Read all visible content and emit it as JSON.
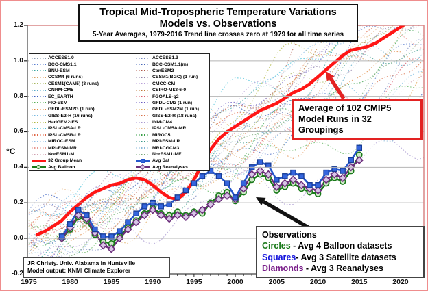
{
  "title": {
    "line1": "Tropical Mid-Tropospheric Temperature Variations",
    "line2": "Models vs. Observations",
    "subtitle": "5-Year Averages, 1979-2016 Trend line crosses zero at 1979 for all time series"
  },
  "axes": {
    "unit_label": "°C",
    "y_tick_labels": [
      "1.2",
      "1.0",
      "0.8",
      "0.6",
      "0.4",
      "0.2",
      "0.0",
      "-0.2"
    ],
    "y_tick_values": [
      1.2,
      1.0,
      0.8,
      0.6,
      0.4,
      0.2,
      0.0,
      -0.2
    ],
    "x_tick_labels": [
      "1975",
      "1980",
      "1985",
      "1990",
      "1995",
      "2000",
      "2005",
      "2010",
      "2015",
      "2020"
    ],
    "x_tick_values": [
      1975,
      1980,
      1985,
      1990,
      1995,
      2000,
      2005,
      2010,
      2015,
      2020
    ]
  },
  "annotations": {
    "cmip5_box": {
      "line1": "Average of 102 CMIP5",
      "line2": "Model Runs in 32 Groupings",
      "border_color": "#e32222"
    },
    "observations_box": {
      "header": "Observations",
      "rows": [
        {
          "word": "Circles",
          "rest": " - Avg 4 Balloon datasets",
          "color": "#1a7a1a"
        },
        {
          "word": "Squares",
          "rest": "- Avg 3 Satellite datasets",
          "color": "#1515dd"
        },
        {
          "word": "Diamonds",
          "rest": " - Avg 3 Reanalyses",
          "color": "#7a1f8a"
        }
      ]
    },
    "credit_box": {
      "line1": "JR Christy. Univ. Alabama in Huntsville",
      "line2": "Model output: KNMI Climate Explorer"
    }
  },
  "legend": {
    "specials_left": [
      {
        "label": "32 Group Mean",
        "color": "#ff1616",
        "type": "thick"
      },
      {
        "label": "Avg Balloon",
        "color": "#1a7a1a",
        "fill": "#cfe9c8",
        "type": "circle"
      }
    ],
    "specials_right": [
      {
        "label": "Avg Sat",
        "color": "#2456cc",
        "fill": "#3565dd",
        "type": "square"
      },
      {
        "label": "Avg Reanalyses",
        "color": "#6b2d7a",
        "fill": "#d8c4e6",
        "type": "diamond"
      }
    ]
  },
  "chart_data": {
    "type": "line",
    "title": "Tropical Mid-Tropospheric Temperature Variations, Models vs. Observations",
    "xlabel": "Year",
    "ylabel": "°C",
    "x_range": [
      1975,
      2023
    ],
    "y_range": [
      -0.2,
      1.2
    ],
    "grid": "horizontal",
    "series": [
      {
        "name": "32 Group Mean",
        "color": "#ff1616",
        "style": "thick-solid",
        "start_year": 1976,
        "values": [
          0.02,
          0.04,
          0.07,
          0.1,
          0.15,
          0.19,
          0.23,
          0.26,
          0.28,
          0.3,
          0.31,
          0.33,
          0.34,
          0.33,
          0.3,
          0.26,
          0.23,
          0.22,
          0.26,
          0.33,
          0.42,
          0.5,
          0.56,
          0.6,
          0.63,
          0.66,
          0.69,
          0.72,
          0.74,
          0.76,
          0.79,
          0.82,
          0.84,
          0.87,
          0.91,
          0.95,
          0.99,
          1.03,
          1.06,
          1.07,
          1.08,
          1.1,
          1.13,
          1.16,
          1.19,
          1.22,
          1.24,
          1.26
        ]
      },
      {
        "name": "Avg Sat",
        "color": "#2456cc",
        "marker": "square",
        "fill": "#3565dd",
        "start_year": 1979,
        "values": [
          0.01,
          0.08,
          0.16,
          0.13,
          0.05,
          0.01,
          0.01,
          0.04,
          0.09,
          0.14,
          0.18,
          0.2,
          0.18,
          0.19,
          0.23,
          0.27,
          0.31,
          0.35,
          0.38,
          0.35,
          0.31,
          0.23,
          0.31,
          0.4,
          0.43,
          0.41,
          0.33,
          0.35,
          0.37,
          0.35,
          0.3,
          0.3,
          0.37,
          0.39,
          0.38,
          0.44,
          0.51
        ]
      },
      {
        "name": "Avg Balloon",
        "color": "#1a7a1a",
        "marker": "circle",
        "fill": "#cfe9c8",
        "start_year": 1979,
        "values": [
          0.0,
          0.05,
          0.12,
          0.1,
          0.02,
          -0.02,
          -0.03,
          0.01,
          0.06,
          0.1,
          0.14,
          0.17,
          0.14,
          0.13,
          0.15,
          0.13,
          0.15,
          0.14,
          0.2,
          0.24,
          0.26,
          0.21,
          0.26,
          0.33,
          0.36,
          0.34,
          0.27,
          0.29,
          0.31,
          0.28,
          0.26,
          0.25,
          0.31,
          0.34,
          0.32,
          0.38,
          0.47
        ]
      },
      {
        "name": "Avg Reanalyses",
        "color": "#6b2d7a",
        "marker": "diamond",
        "fill": "#d8c4e6",
        "start_year": 1979,
        "values": [
          0.0,
          0.06,
          0.13,
          0.11,
          0.03,
          -0.04,
          -0.06,
          0.0,
          0.05,
          0.09,
          0.13,
          0.16,
          0.13,
          0.11,
          0.13,
          0.12,
          0.14,
          0.16,
          0.19,
          0.22,
          0.24,
          0.22,
          0.28,
          0.36,
          0.38,
          0.36,
          0.29,
          0.31,
          0.33,
          0.3,
          0.28,
          0.27,
          0.33,
          0.36,
          0.34,
          0.4,
          0.44
        ]
      }
    ],
    "model_runs": [
      {
        "name": "ACCESS1.0",
        "color": "#8a9bb0",
        "end": 1.35
      },
      {
        "name": "BCC-CMS1.1",
        "color": "#5b7fd0",
        "end": 1.1
      },
      {
        "name": "BNU-ESM",
        "color": "#3aa6a0",
        "end": 1.45
      },
      {
        "name": "CCSM4 (6 runs)",
        "color": "#d9a05f",
        "end": 1.25
      },
      {
        "name": "CESM1(CAM5) (3 runs)",
        "color": "#a8b860",
        "end": 1.3
      },
      {
        "name": "CNRM-CM5",
        "color": "#58a8c8",
        "end": 1.15
      },
      {
        "name": "EC_EARTH",
        "color": "#3a5fc0",
        "end": 0.85
      },
      {
        "name": "FIO-ESM",
        "color": "#58b058",
        "end": 0.8
      },
      {
        "name": "GFDL-ESM2G (1 run)",
        "color": "#e08840",
        "end": 1.05
      },
      {
        "name": "GISS-E2-H (16 runs)",
        "color": "#78b8e0",
        "end": 0.95
      },
      {
        "name": "HadGEM2-ES",
        "color": "#b0b840",
        "end": 1.55
      },
      {
        "name": "IPSL-CM5A-LR",
        "color": "#48c0d8",
        "end": 1.5
      },
      {
        "name": "IPSL-CM5B-LR",
        "color": "#e06848",
        "end": 1.4
      },
      {
        "name": "MIROC-ESM",
        "color": "#90c0e8",
        "end": 1.6
      },
      {
        "name": "MPI-ESM-MR",
        "color": "#e89890",
        "end": 1.2
      },
      {
        "name": "NorESM1-M",
        "color": "#d0a0b0",
        "end": 0.95
      },
      {
        "name": "ACCESS1.3",
        "color": "#7888c0",
        "end": 1.0
      },
      {
        "name": "BCC-CSM1.1(m)",
        "color": "#4868b8",
        "end": 1.3
      },
      {
        "name": "CanESM2",
        "color": "#b05848",
        "end": 1.7
      },
      {
        "name": "CESM1(BGC) (1 run)",
        "color": "#9080a8",
        "end": 1.25
      },
      {
        "name": "CMCC-CM",
        "color": "#b8a0d8",
        "end": 1.45
      },
      {
        "name": "CSIRO-Mk3-6-0",
        "color": "#c07838",
        "end": 1.5
      },
      {
        "name": "FGOALS-g2",
        "color": "#d85868",
        "end": 0.9
      },
      {
        "name": "GFDL-CM3 (1 run)",
        "color": "#6858c0",
        "end": 1.55
      },
      {
        "name": "GFDL-ESM2M (1 run)",
        "color": "#e0a858",
        "end": 0.95
      },
      {
        "name": "GISS-E2-R (18 runs)",
        "color": "#d87048",
        "end": 1.0
      },
      {
        "name": "INM-CM4",
        "color": "#a898d0",
        "end": 0.55
      },
      {
        "name": "IPSL-CM5A-MR",
        "color": "#e8b888",
        "end": 1.45
      },
      {
        "name": "MIROC5",
        "color": "#38a048",
        "end": 1.1
      },
      {
        "name": "MPI-ESM-LR",
        "color": "#389888",
        "end": 1.15
      },
      {
        "name": "MRI-CGCM3",
        "color": "#88b8d8",
        "end": 0.75
      },
      {
        "name": "NorESM1-ME",
        "color": "#78a878",
        "end": 1.05
      }
    ],
    "colors": {
      "grid": "#b5b5b5",
      "frame_dark": "#444444",
      "frame_pink": "#d98585",
      "arrow_red": "#e32222",
      "arrow_black": "#111111"
    }
  }
}
